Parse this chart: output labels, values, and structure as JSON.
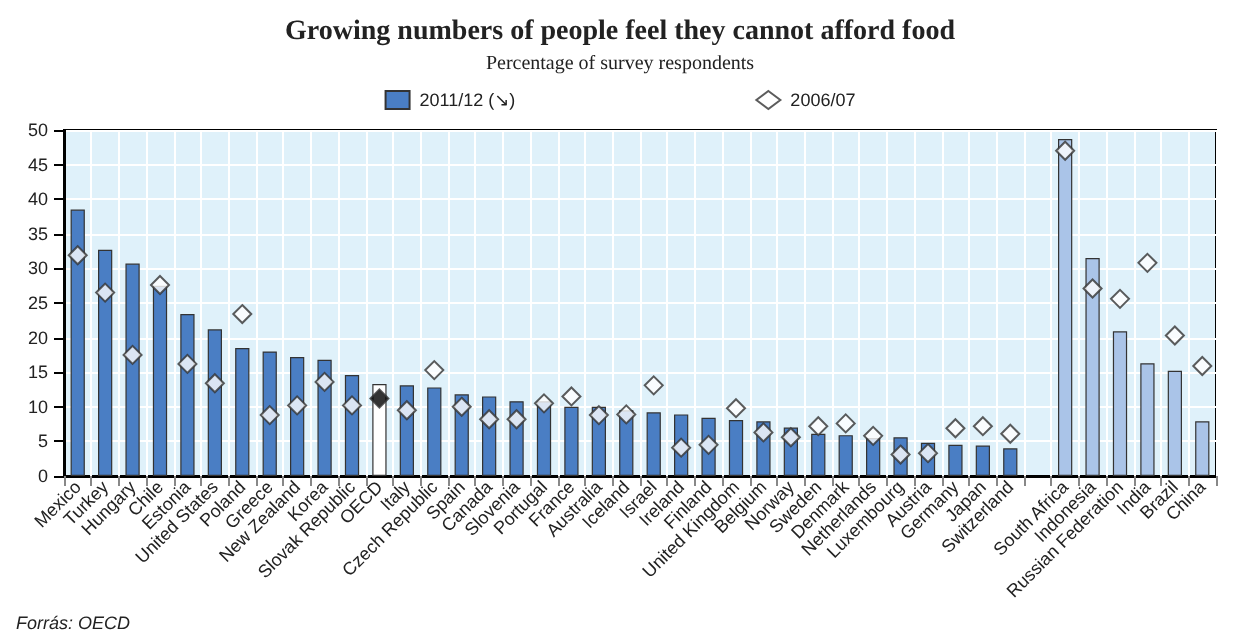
{
  "chart_data": {
    "type": "bar",
    "title": "Growing numbers of people feel they cannot afford food",
    "subtitle": "Percentage of survey respondents",
    "categories": [
      "Mexico",
      "Turkey",
      "Hungary",
      "Chile",
      "Estonia",
      "United States",
      "Poland",
      "Greece",
      "New Zealand",
      "Korea",
      "Slovak Republic",
      "OECD",
      "Italy",
      "Czech Republic",
      "Spain",
      "Canada",
      "Slovenia",
      "Portugal",
      "France",
      "Australia",
      "Iceland",
      "Israel",
      "Ireland",
      "Finland",
      "United Kingdom",
      "Belgium",
      "Norway",
      "Sweden",
      "Denmark",
      "Netherlands",
      "Luxembourg",
      "Austria",
      "Germany",
      "Japan",
      "Switzerland",
      null,
      "South Africa",
      "Indonesia",
      "Russian Federation",
      "India",
      "Brazil",
      "China"
    ],
    "series": [
      {
        "name": "2011/12 (↘)",
        "color": "#4a7ec4",
        "colors": [
          "#4a7ec4",
          "#4a7ec4",
          "#4a7ec4",
          "#4a7ec4",
          "#4a7ec4",
          "#4a7ec4",
          "#4a7ec4",
          "#4a7ec4",
          "#4a7ec4",
          "#4a7ec4",
          "#4a7ec4",
          "#ffffff",
          "#4a7ec4",
          "#4a7ec4",
          "#4a7ec4",
          "#4a7ec4",
          "#4a7ec4",
          "#4a7ec4",
          "#4a7ec4",
          "#4a7ec4",
          "#4a7ec4",
          "#4a7ec4",
          "#4a7ec4",
          "#4a7ec4",
          "#4a7ec4",
          "#4a7ec4",
          "#4a7ec4",
          "#4a7ec4",
          "#4a7ec4",
          "#4a7ec4",
          "#4a7ec4",
          "#4a7ec4",
          "#4a7ec4",
          "#4a7ec4",
          "#4a7ec4",
          "#4a7ec4",
          "#aac4e8",
          "#aac4e8",
          "#aac4e8",
          "#aac4e8",
          "#aac4e8",
          "#aac4e8"
        ],
        "values": [
          38.5,
          32.7,
          30.7,
          27.5,
          23.4,
          21.2,
          18.5,
          18.0,
          17.2,
          16.8,
          14.6,
          13.3,
          13.1,
          12.8,
          11.8,
          11.5,
          10.8,
          10.8,
          10.0,
          10.0,
          9.5,
          9.2,
          8.9,
          8.4,
          8.1,
          7.9,
          7.0,
          6.1,
          5.9,
          5.5,
          5.6,
          4.8,
          4.5,
          4.4,
          4.0,
          null,
          48.7,
          31.5,
          20.9,
          16.3,
          15.2,
          7.9
        ]
      },
      {
        "name": "2006/07",
        "type": "scatter",
        "color": "#ffffff",
        "colors": [
          "#ffffff",
          "#ffffff",
          "#ffffff",
          "#ffffff",
          "#ffffff",
          "#ffffff",
          "#ffffff",
          "#ffffff",
          "#ffffff",
          "#ffffff",
          "#ffffff",
          "#000000",
          "#ffffff",
          "#ffffff",
          "#ffffff",
          "#ffffff",
          "#ffffff",
          "#ffffff",
          "#ffffff",
          "#ffffff",
          "#ffffff",
          "#ffffff",
          "#ffffff",
          "#ffffff",
          "#ffffff",
          "#ffffff",
          "#ffffff",
          "#ffffff",
          "#ffffff",
          "#ffffff",
          "#ffffff",
          "#ffffff",
          "#ffffff",
          "#ffffff",
          "#ffffff",
          "#ffffff",
          "#ffffff",
          "#ffffff",
          "#ffffff",
          "#ffffff",
          "#ffffff",
          "#ffffff"
        ],
        "values": [
          31.9,
          26.5,
          17.5,
          27.6,
          16.2,
          13.4,
          23.4,
          8.8,
          10.2,
          13.6,
          10.2,
          11.2,
          9.5,
          15.3,
          10.0,
          8.2,
          8.2,
          10.5,
          11.5,
          8.8,
          8.9,
          13.1,
          4.1,
          4.5,
          9.8,
          6.3,
          5.6,
          7.2,
          7.6,
          5.8,
          3.1,
          3.3,
          6.9,
          7.2,
          6.1,
          null,
          47.0,
          27.1,
          25.6,
          30.8,
          20.3,
          15.9
        ]
      }
    ],
    "ylim": [
      0,
      50
    ],
    "yticks": [
      0,
      5,
      10,
      15,
      20,
      25,
      30,
      35,
      40,
      45,
      50
    ],
    "grid": true,
    "legend": "top",
    "marker": "diamond",
    "annotations": [
      "Forrás: OECD"
    ]
  }
}
